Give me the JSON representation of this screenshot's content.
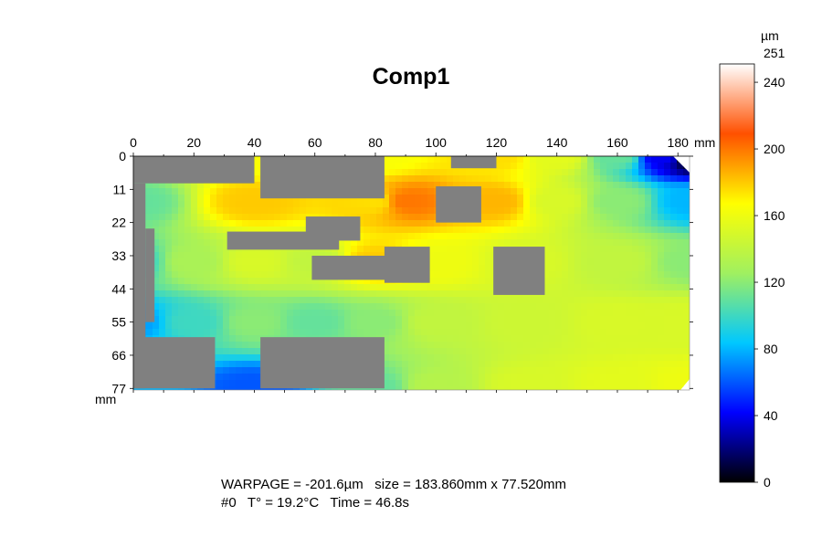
{
  "title": "Comp1",
  "info": {
    "line1": "WARPAGE = -201.6µm   size = 183.860mm x 77.520mm",
    "line2": "#0   T° = 19.2°C   Time = 46.8s"
  },
  "chart_data": {
    "type": "heatmap",
    "title": "Comp1",
    "x_axis": {
      "unit": "mm",
      "ticks": [
        0,
        20,
        40,
        60,
        80,
        100,
        120,
        140,
        160,
        180
      ],
      "range": [
        0,
        183.86
      ]
    },
    "y_axis": {
      "unit": "mm",
      "ticks": [
        0,
        11,
        22,
        33,
        44,
        55,
        66,
        77
      ],
      "range": [
        0,
        77.52
      ],
      "direction": "down"
    },
    "colorbar": {
      "unit": "µm",
      "max_label": 251,
      "ticks": [
        0,
        40,
        80,
        120,
        160,
        200,
        240
      ],
      "range": [
        0,
        251
      ],
      "colors": [
        "#000000",
        "#0000ff",
        "#00c8ff",
        "#a0f060",
        "#ffff00",
        "#ff5000",
        "#ffffff"
      ]
    },
    "field_samples": [
      {
        "x": 0,
        "y": 0,
        "v": 130
      },
      {
        "x": 40,
        "y": 0,
        "v": 165
      },
      {
        "x": 80,
        "y": 0,
        "v": 165
      },
      {
        "x": 120,
        "y": 0,
        "v": 175
      },
      {
        "x": 140,
        "y": 0,
        "v": 155
      },
      {
        "x": 160,
        "y": 0,
        "v": 110
      },
      {
        "x": 175,
        "y": 0,
        "v": 40
      },
      {
        "x": 184,
        "y": 0,
        "v": 0
      },
      {
        "x": 0,
        "y": 15,
        "v": 110
      },
      {
        "x": 40,
        "y": 15,
        "v": 180
      },
      {
        "x": 80,
        "y": 15,
        "v": 175
      },
      {
        "x": 90,
        "y": 15,
        "v": 200
      },
      {
        "x": 120,
        "y": 15,
        "v": 185
      },
      {
        "x": 140,
        "y": 15,
        "v": 150
      },
      {
        "x": 160,
        "y": 15,
        "v": 120
      },
      {
        "x": 184,
        "y": 15,
        "v": 80
      },
      {
        "x": 0,
        "y": 35,
        "v": 100
      },
      {
        "x": 20,
        "y": 35,
        "v": 130
      },
      {
        "x": 40,
        "y": 35,
        "v": 150
      },
      {
        "x": 60,
        "y": 35,
        "v": 140
      },
      {
        "x": 80,
        "y": 35,
        "v": 180
      },
      {
        "x": 100,
        "y": 35,
        "v": 160
      },
      {
        "x": 130,
        "y": 35,
        "v": 150
      },
      {
        "x": 160,
        "y": 35,
        "v": 140
      },
      {
        "x": 184,
        "y": 35,
        "v": 120
      },
      {
        "x": 0,
        "y": 55,
        "v": 75
      },
      {
        "x": 20,
        "y": 55,
        "v": 100
      },
      {
        "x": 40,
        "y": 55,
        "v": 120
      },
      {
        "x": 60,
        "y": 55,
        "v": 110
      },
      {
        "x": 80,
        "y": 55,
        "v": 120
      },
      {
        "x": 100,
        "y": 55,
        "v": 140
      },
      {
        "x": 130,
        "y": 55,
        "v": 145
      },
      {
        "x": 160,
        "y": 55,
        "v": 150
      },
      {
        "x": 184,
        "y": 55,
        "v": 150
      },
      {
        "x": 0,
        "y": 77,
        "v": 80
      },
      {
        "x": 40,
        "y": 77,
        "v": 60
      },
      {
        "x": 80,
        "y": 77,
        "v": 110
      },
      {
        "x": 100,
        "y": 77,
        "v": 135
      },
      {
        "x": 130,
        "y": 77,
        "v": 150
      },
      {
        "x": 160,
        "y": 77,
        "v": 155
      },
      {
        "x": 184,
        "y": 77,
        "v": 160
      }
    ],
    "masked_regions": [
      {
        "x0": 0,
        "x1": 40,
        "y0": 0,
        "y1": 9
      },
      {
        "x0": 0,
        "x1": 4,
        "y0": 9,
        "y1": 77
      },
      {
        "x0": 4,
        "x1": 7,
        "y0": 24,
        "y1": 55
      },
      {
        "x0": 0,
        "x1": 27,
        "y0": 60,
        "y1": 77
      },
      {
        "x0": 42,
        "x1": 83,
        "y0": 0,
        "y1": 14
      },
      {
        "x0": 42,
        "x1": 83,
        "y0": 60,
        "y1": 77
      },
      {
        "x0": 31,
        "x1": 68,
        "y0": 25,
        "y1": 31
      },
      {
        "x0": 57,
        "x1": 75,
        "y0": 20,
        "y1": 28
      },
      {
        "x0": 59,
        "x1": 84,
        "y0": 33,
        "y1": 41
      },
      {
        "x0": 83,
        "x1": 98,
        "y0": 30,
        "y1": 42
      },
      {
        "x0": 100,
        "x1": 115,
        "y0": 10,
        "y1": 22
      },
      {
        "x0": 119,
        "x1": 136,
        "y0": 30,
        "y1": 46
      },
      {
        "x0": 105,
        "x1": 120,
        "y0": 0,
        "y1": 4
      }
    ]
  }
}
